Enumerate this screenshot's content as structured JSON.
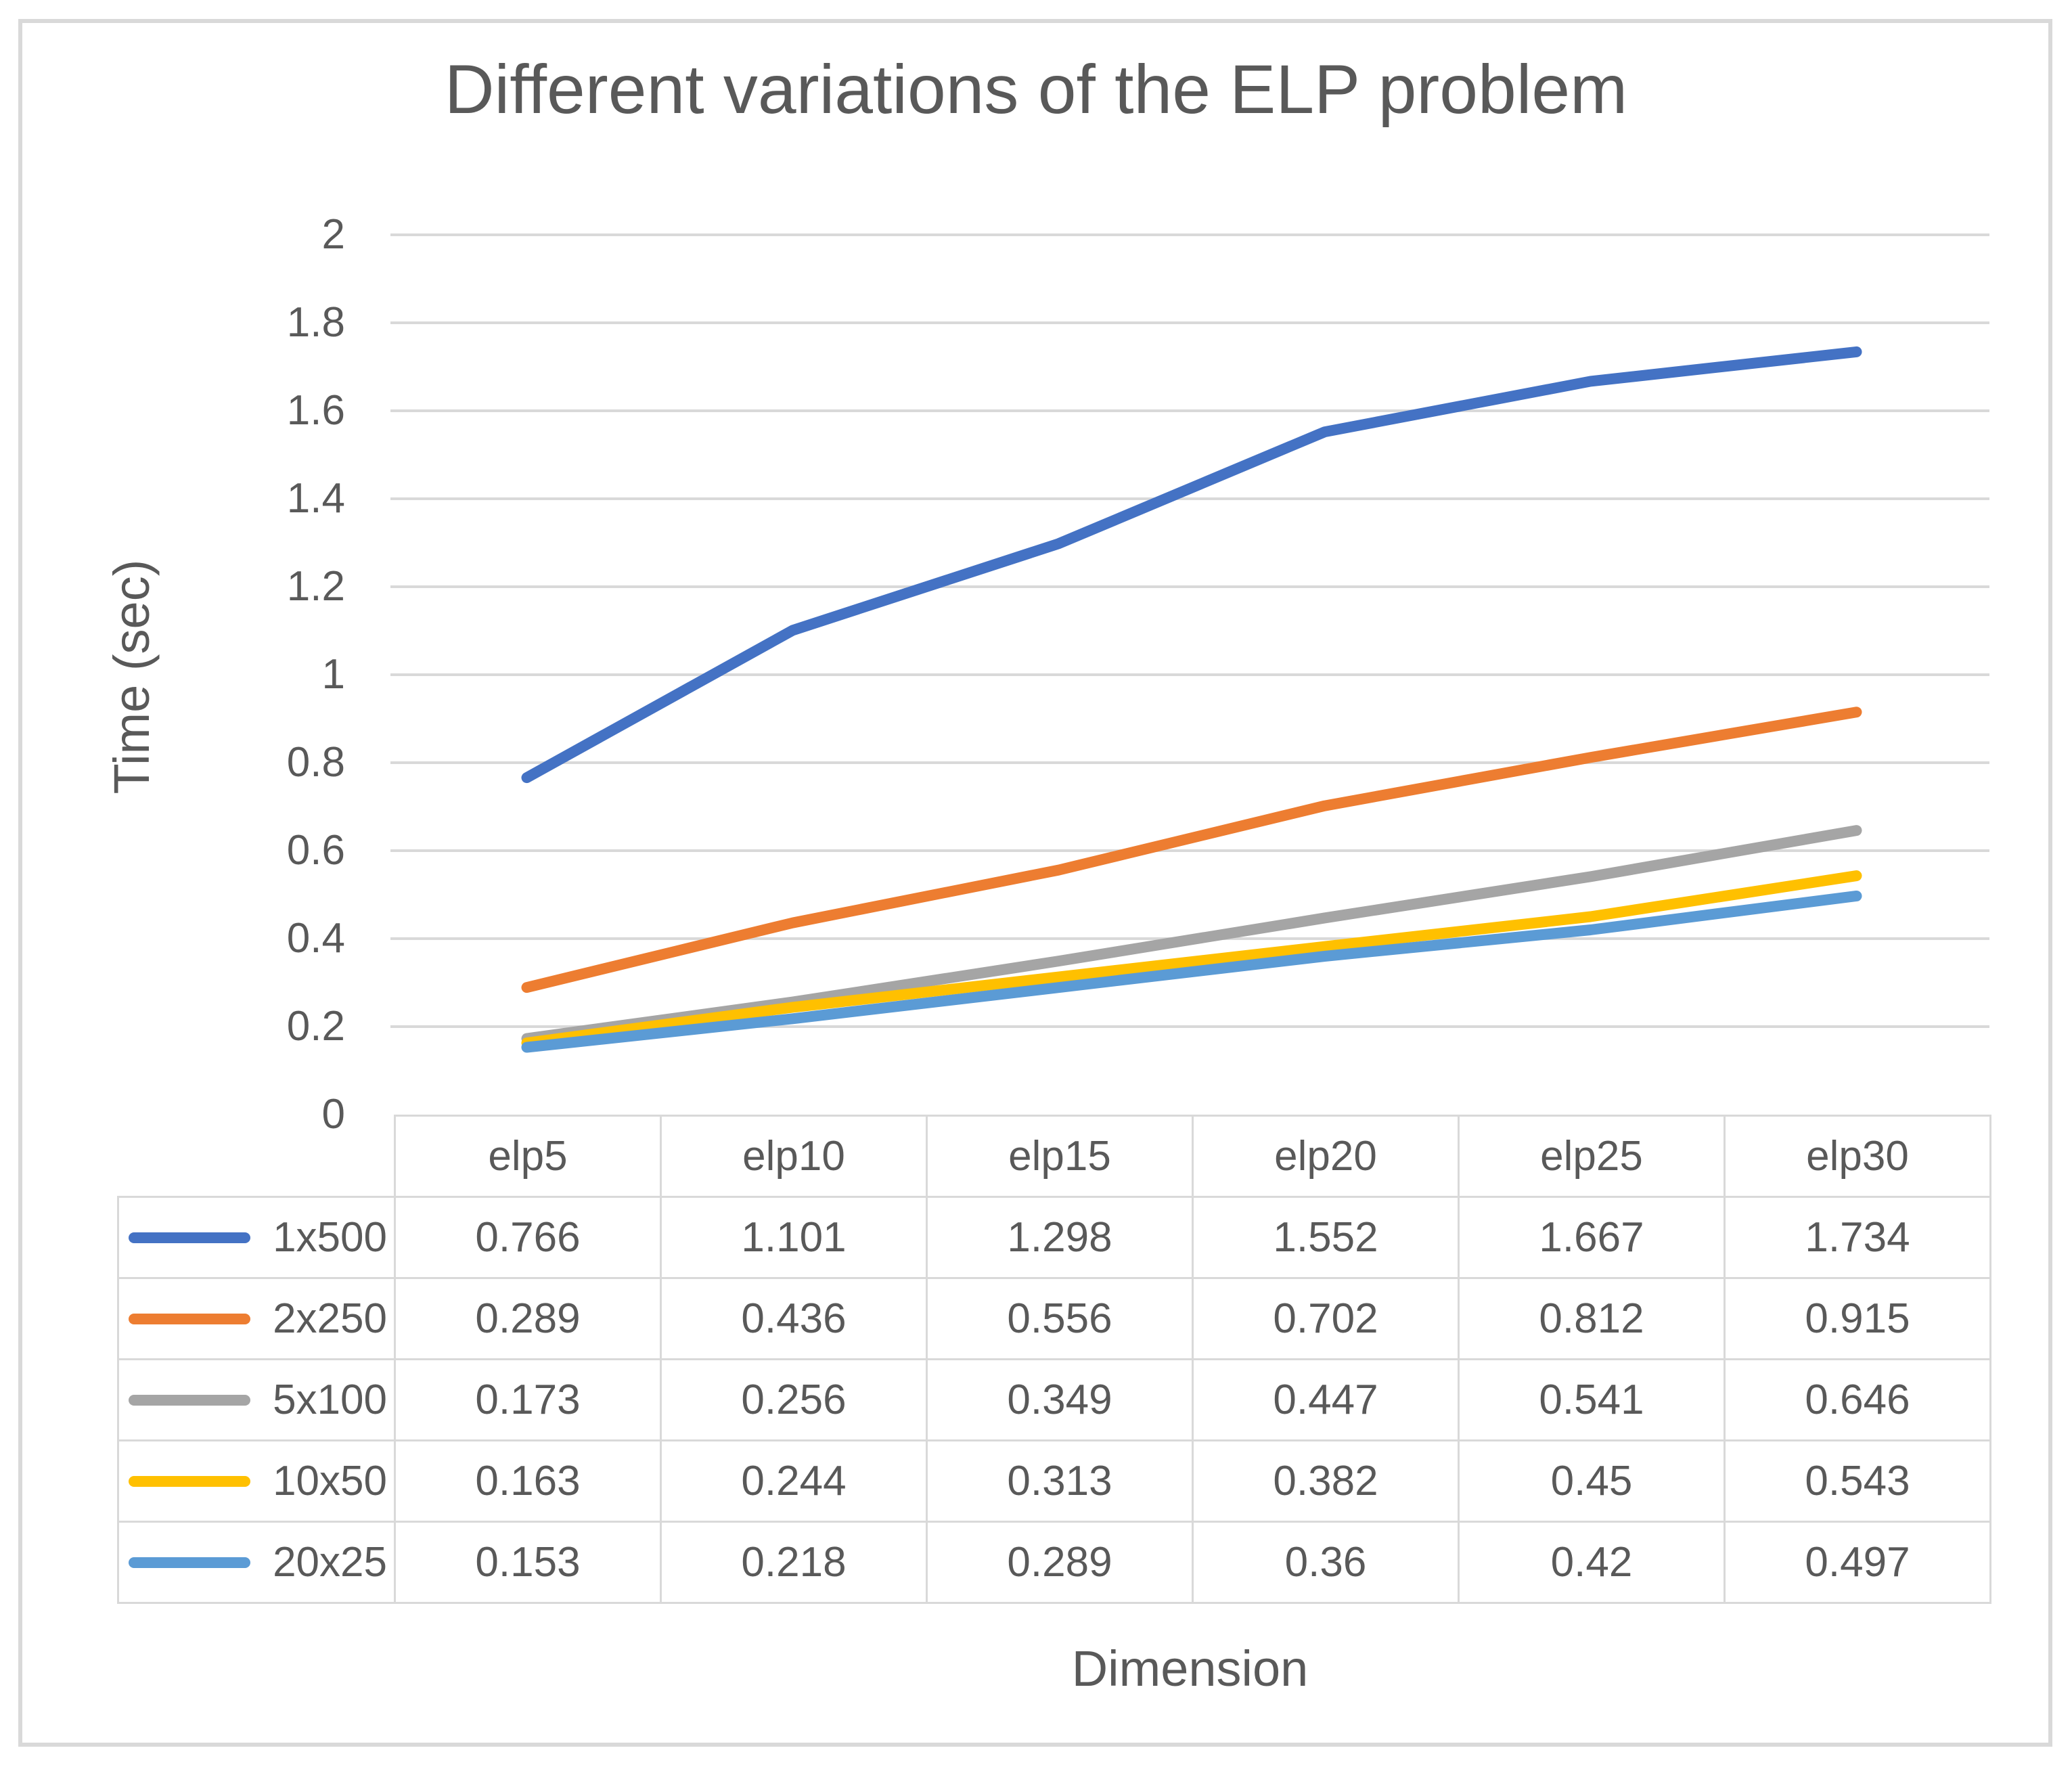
{
  "title": "Different variations of the ELP problem",
  "y_axis": {
    "title": "Time (sec)",
    "ticks": [
      "2",
      "1.8",
      "1.6",
      "1.4",
      "1.2",
      "1",
      "0.8",
      "0.6",
      "0.4",
      "0.2",
      "0"
    ],
    "max": 2,
    "min": 0,
    "step": 0.2
  },
  "x_axis": {
    "title": "Dimension"
  },
  "chart_data": {
    "type": "line",
    "title": "Different variations of the ELP problem",
    "xlabel": "Dimension",
    "ylabel": "Time (sec)",
    "ylim": [
      0,
      2
    ],
    "ytick_step": 0.2,
    "grid": true,
    "legend_position": "table-left",
    "categories": [
      "elp5",
      "elp10",
      "elp15",
      "elp20",
      "elp25",
      "elp30"
    ],
    "series": [
      {
        "name": "1x500",
        "color": "#4472C4",
        "values": [
          0.766,
          1.101,
          1.298,
          1.552,
          1.667,
          1.734
        ]
      },
      {
        "name": "2x250",
        "color": "#ED7D31",
        "values": [
          0.289,
          0.436,
          0.556,
          0.702,
          0.812,
          0.915
        ]
      },
      {
        "name": "5x100",
        "color": "#A5A5A5",
        "values": [
          0.173,
          0.256,
          0.349,
          0.447,
          0.541,
          0.646
        ]
      },
      {
        "name": "10x50",
        "color": "#FFC000",
        "values": [
          0.163,
          0.244,
          0.313,
          0.382,
          0.45,
          0.543
        ]
      },
      {
        "name": "20x25",
        "color": "#5B9BD5",
        "values": [
          0.153,
          0.218,
          0.289,
          0.36,
          0.42,
          0.497
        ]
      }
    ]
  },
  "colors": {
    "text": "#595959",
    "gridline": "#D9D9D9",
    "table_border": "#D9D9D9",
    "frame_border": "#D9D9D9"
  }
}
